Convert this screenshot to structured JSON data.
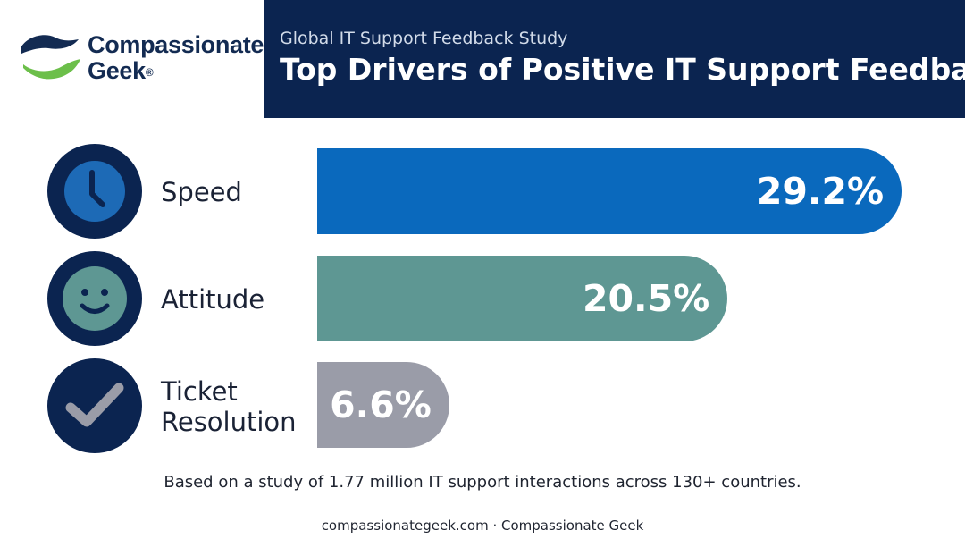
{
  "brand": {
    "name_line1": "Compassionate",
    "name_line2": "Geek",
    "mark": "®"
  },
  "header": {
    "subtitle": "Global IT Support Feedback Study",
    "title": "Top Drivers of Positive IT Support Feedback"
  },
  "chart_data": {
    "type": "bar",
    "orientation": "horizontal",
    "title": "Top Drivers of Positive IT Support Feedback",
    "subtitle": "Global IT Support Feedback Study",
    "categories": [
      "Speed",
      "Attitude",
      "Ticket Resolution"
    ],
    "values": [
      29.2,
      20.5,
      6.6
    ],
    "value_labels": [
      "29.2%",
      "20.5%",
      "6.6%"
    ],
    "category_lines": [
      [
        "Speed"
      ],
      [
        "Attitude"
      ],
      [
        "Ticket",
        "Resolution"
      ]
    ],
    "icons": [
      "clock-icon",
      "smiley-icon",
      "checkmark-icon"
    ],
    "colors": [
      "#0a69bd",
      "#5e9793",
      "#9a9ca8"
    ],
    "xlim": [
      0,
      30
    ]
  },
  "footnote": "Based on a study of 1.77 million IT support interactions across 130+ countries.",
  "footer": "compassionategeek.com · Compassionate Geek",
  "colors": {
    "navy": "#0b2450",
    "brand_green": "#6cbf4a"
  }
}
